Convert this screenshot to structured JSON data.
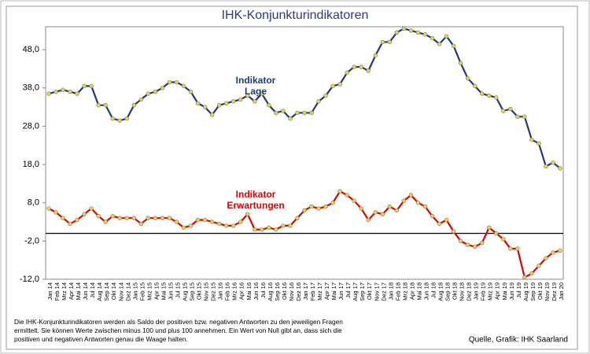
{
  "chart_data": {
    "type": "line",
    "title": "IHK-Konjunkturindikatoren",
    "categories": [
      "Jan 14",
      "Feb 14",
      "Mrz 14",
      "Apr 14",
      "Mai 14",
      "Jun 14",
      "Jul 14",
      "Aug 14",
      "Sep 14",
      "Okt 14",
      "Nov 14",
      "Dez 14",
      "Jan 15",
      "Feb 15",
      "Mrz 15",
      "Apr 15",
      "Mai 15",
      "Jun 15",
      "Jul 15",
      "Aug 15",
      "Sep 15",
      "Okt 15",
      "Nov 15",
      "Dez 15",
      "Jan 16",
      "Feb 16",
      "Mrz 16",
      "Apr 16",
      "Mai 16",
      "Jun 16",
      "Jul 16",
      "Aug 16",
      "Sep 16",
      "Okt 16",
      "Nov 16",
      "Dez 16",
      "Jan 17",
      "Feb 17",
      "Mrz 17",
      "Apr 17",
      "Mai 17",
      "Jun 17",
      "Jul 17",
      "Aug 17",
      "Sep 17",
      "Okt 17",
      "Nov 17",
      "Dez 17",
      "Jan 18",
      "Feb 18",
      "Mrz 18",
      "Apr 18",
      "Mai 18",
      "Jun 18",
      "Jul 18",
      "Aug 18",
      "Sep 18",
      "Okt 18",
      "Nov 18",
      "Dez 18",
      "Jan 19",
      "Feb 19",
      "Mrz 19",
      "Apr 19",
      "Mai 19",
      "Jun 19",
      "Jul 19",
      "Aug 19",
      "Sep 19",
      "Okt 19",
      "Nov 19",
      "Dez 19",
      "Jan 20"
    ],
    "series": [
      {
        "name": "Indikator Lage",
        "color": "#1f3a78",
        "marker_color": "#e8d44d",
        "values": [
          36.5,
          37,
          37.5,
          37,
          36.5,
          38.5,
          38.5,
          33.5,
          33.5,
          30,
          29.5,
          30,
          33.5,
          35,
          36.5,
          37,
          38,
          39.5,
          39.5,
          38.5,
          37,
          34,
          33,
          31,
          33.5,
          34,
          34.5,
          35,
          36,
          34.5,
          36.5,
          33.5,
          31.5,
          32,
          30,
          31.5,
          31.5,
          31.5,
          34.5,
          36,
          38.5,
          39,
          42,
          43.5,
          43.5,
          42.5,
          46.5,
          50,
          50,
          52.5,
          53.5,
          53,
          52.5,
          52,
          51,
          49.5,
          51.5,
          49,
          44.5,
          40.5,
          38.5,
          36.5,
          36,
          35.5,
          32,
          32.5,
          30.5,
          30.5,
          24.5,
          23.5,
          17.5,
          18.5,
          17
        ]
      },
      {
        "name": "Indikator Erwartungen",
        "color": "#e00000",
        "marker_color": "#e8d44d",
        "values": [
          6.5,
          5.5,
          4,
          2.5,
          3.5,
          5,
          6.5,
          4.5,
          3,
          4.5,
          4,
          4,
          4,
          2.5,
          4,
          4,
          4,
          4,
          3,
          1.5,
          2,
          3.5,
          3.5,
          3,
          2.5,
          2,
          2,
          3,
          5,
          1,
          1,
          1.5,
          1,
          2,
          2,
          4,
          6,
          7,
          6.5,
          7,
          8,
          11,
          10,
          8.5,
          6.5,
          3.5,
          5.5,
          5,
          7,
          6,
          8.5,
          10,
          8,
          7,
          4.5,
          2.5,
          3.5,
          0.5,
          -2,
          -3,
          -3.5,
          -2.5,
          1.5,
          0,
          -1.5,
          -4,
          -4,
          -11.5,
          -10.5,
          -8.5,
          -6.5,
          -5,
          -4.5
        ]
      }
    ],
    "ylim": [
      -12,
      54
    ],
    "yticks": [
      {
        "value": -12,
        "label": "-12,0"
      },
      {
        "value": -2,
        "label": "-2,0"
      },
      {
        "value": 8,
        "label": "8,0"
      },
      {
        "value": 18,
        "label": "18,0"
      },
      {
        "value": 28,
        "label": "28,0"
      },
      {
        "value": 38,
        "label": "38,0"
      },
      {
        "value": 48,
        "label": "48,0"
      }
    ],
    "hline": 0,
    "annotations": [
      [
        "Indikator",
        "Lage"
      ],
      [
        "Indikator",
        "Erwartungen"
      ]
    ],
    "note": [
      "Die IHK-Konjunkturindikatoren werden als Saldo der positiven bzw. negativen Antworten zu den jeweiligen Fragen",
      "ermittelt. Sie können Werte zwischen minus 100 und plus 100 annehmen. Ein Wert von Null gibt an, dass sich die",
      "positiven und negativen Antworten genau die Waage halten."
    ],
    "source": "Quelle, Grafik: IHK Saarland"
  }
}
